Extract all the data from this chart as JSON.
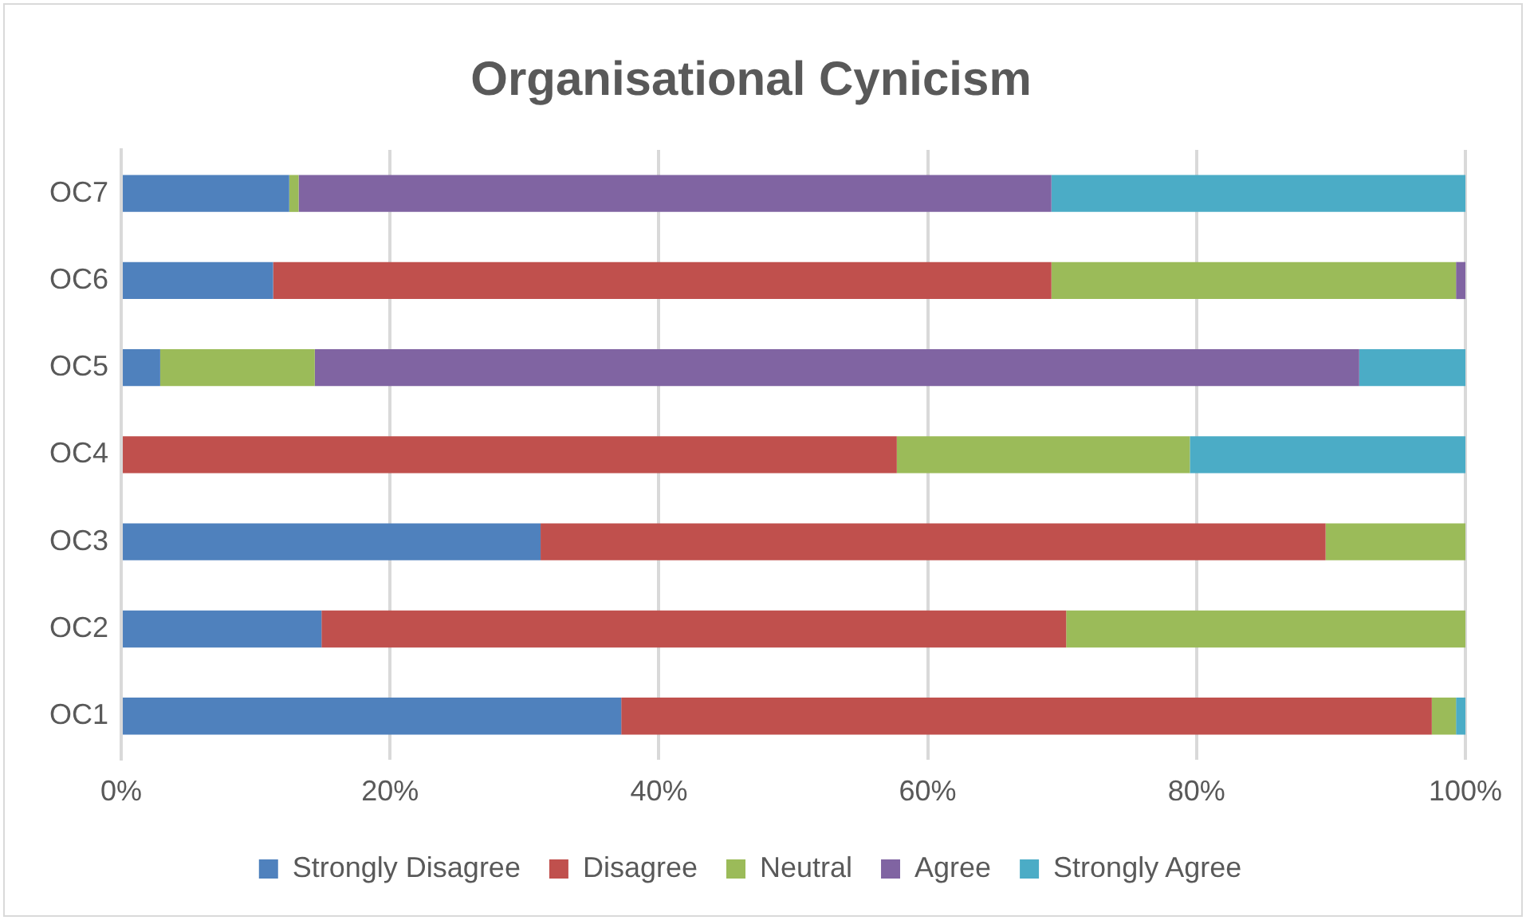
{
  "chart_data": {
    "type": "bar",
    "title": "Organisational Cynicism",
    "orientation": "horizontal",
    "stacked": true,
    "categories": [
      "OC7",
      "OC6",
      "OC5",
      "OC4",
      "OC3",
      "OC2",
      "OC1"
    ],
    "series": [
      {
        "name": "Strongly Disagree",
        "color": "#4f81bd",
        "values": [
          12.5,
          11.3,
          2.9,
          0,
          31.2,
          14.9,
          37.2
        ]
      },
      {
        "name": "Disagree",
        "color": "#c0504d",
        "values": [
          0,
          57.9,
          0,
          57.7,
          58.4,
          55.4,
          60.3
        ]
      },
      {
        "name": "Neutral",
        "color": "#9bbb59",
        "values": [
          0.7,
          30.1,
          11.5,
          21.8,
          10.4,
          29.7,
          1.8
        ]
      },
      {
        "name": "Agree",
        "color": "#8064a2",
        "values": [
          56.0,
          0.7,
          77.7,
          0,
          0,
          0,
          0
        ]
      },
      {
        "name": "Strongly Agree",
        "color": "#4bacc6",
        "values": [
          30.8,
          0,
          7.9,
          20.5,
          0,
          0,
          0.7
        ]
      }
    ],
    "xlim": [
      0,
      100
    ],
    "xticks": [
      {
        "value": 0,
        "label": "0%"
      },
      {
        "value": 20,
        "label": "20%"
      },
      {
        "value": 40,
        "label": "40%"
      },
      {
        "value": 60,
        "label": "60%"
      },
      {
        "value": 80,
        "label": "80%"
      },
      {
        "value": 100,
        "label": "100%"
      }
    ],
    "grid": "x",
    "legend": "bottom"
  }
}
